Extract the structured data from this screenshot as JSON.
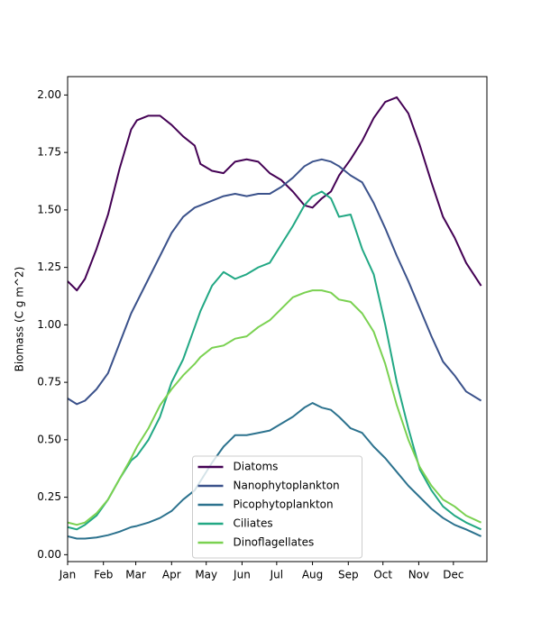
{
  "chart_data": {
    "type": "line",
    "ylabel": "Biomass (C g m^2)",
    "x": [
      0,
      8,
      15,
      25,
      35,
      45,
      55,
      60,
      70,
      80,
      90,
      100,
      110,
      115,
      125,
      135,
      145,
      155,
      165,
      175,
      185,
      195,
      205,
      212,
      220,
      228,
      235,
      245,
      255,
      265,
      275,
      285,
      295,
      305,
      315,
      325,
      335,
      345,
      358
    ],
    "xlim": [
      0,
      363
    ],
    "xticks": [
      {
        "value": 0,
        "label": "Jan"
      },
      {
        "value": 31,
        "label": "Feb"
      },
      {
        "value": 59,
        "label": "Mar"
      },
      {
        "value": 90,
        "label": "Apr"
      },
      {
        "value": 120,
        "label": "May"
      },
      {
        "value": 151,
        "label": "Jun"
      },
      {
        "value": 181,
        "label": "Jul"
      },
      {
        "value": 212,
        "label": "Aug"
      },
      {
        "value": 243,
        "label": "Sep"
      },
      {
        "value": 273,
        "label": "Oct"
      },
      {
        "value": 304,
        "label": "Nov"
      },
      {
        "value": 334,
        "label": "Dec"
      }
    ],
    "ylim": [
      -0.03,
      2.08
    ],
    "yticks": [
      {
        "value": 0,
        "label": "0.00"
      },
      {
        "value": 0.25,
        "label": "0.25"
      },
      {
        "value": 0.5,
        "label": "0.50"
      },
      {
        "value": 0.75,
        "label": "0.75"
      },
      {
        "value": 1,
        "label": "1.00"
      },
      {
        "value": 1.25,
        "label": "1.25"
      },
      {
        "value": 1.5,
        "label": "1.50"
      },
      {
        "value": 1.75,
        "label": "1.75"
      },
      {
        "value": 2,
        "label": "2.00"
      }
    ],
    "legend": "lower center",
    "series": [
      {
        "name": "Diatoms",
        "color": "#440154",
        "values": [
          1.19,
          1.15,
          1.2,
          1.33,
          1.48,
          1.68,
          1.85,
          1.89,
          1.91,
          1.91,
          1.87,
          1.82,
          1.78,
          1.7,
          1.67,
          1.66,
          1.71,
          1.72,
          1.71,
          1.66,
          1.63,
          1.58,
          1.52,
          1.51,
          1.55,
          1.58,
          1.65,
          1.72,
          1.8,
          1.9,
          1.97,
          1.99,
          1.92,
          1.78,
          1.62,
          1.47,
          1.38,
          1.27,
          1.17
        ]
      },
      {
        "name": "Nanophytoplankton",
        "color": "#3b528b",
        "values": [
          0.68,
          0.655,
          0.67,
          0.72,
          0.79,
          0.92,
          1.05,
          1.1,
          1.2,
          1.3,
          1.4,
          1.47,
          1.51,
          1.52,
          1.54,
          1.56,
          1.57,
          1.56,
          1.57,
          1.57,
          1.6,
          1.64,
          1.69,
          1.71,
          1.72,
          1.71,
          1.69,
          1.65,
          1.62,
          1.53,
          1.42,
          1.3,
          1.19,
          1.07,
          0.95,
          0.84,
          0.78,
          0.71,
          0.67
        ]
      },
      {
        "name": "Picophytoplankton",
        "color": "#2c728e",
        "values": [
          0.08,
          0.07,
          0.07,
          0.075,
          0.085,
          0.1,
          0.12,
          0.125,
          0.14,
          0.16,
          0.19,
          0.24,
          0.28,
          0.32,
          0.4,
          0.47,
          0.52,
          0.52,
          0.53,
          0.54,
          0.57,
          0.6,
          0.64,
          0.66,
          0.64,
          0.63,
          0.6,
          0.55,
          0.53,
          0.47,
          0.42,
          0.36,
          0.3,
          0.25,
          0.2,
          0.16,
          0.13,
          0.11,
          0.08
        ]
      },
      {
        "name": "Ciliates",
        "color": "#22a884",
        "values": [
          0.12,
          0.11,
          0.13,
          0.17,
          0.24,
          0.33,
          0.41,
          0.43,
          0.5,
          0.6,
          0.75,
          0.85,
          0.99,
          1.06,
          1.17,
          1.23,
          1.2,
          1.22,
          1.25,
          1.27,
          1.35,
          1.43,
          1.52,
          1.56,
          1.58,
          1.55,
          1.47,
          1.48,
          1.33,
          1.22,
          1.0,
          0.75,
          0.55,
          0.37,
          0.28,
          0.21,
          0.17,
          0.14,
          0.11
        ]
      },
      {
        "name": "Dinoflagellates",
        "color": "#7ad151",
        "values": [
          0.14,
          0.13,
          0.14,
          0.18,
          0.24,
          0.33,
          0.42,
          0.47,
          0.55,
          0.65,
          0.72,
          0.78,
          0.83,
          0.86,
          0.9,
          0.91,
          0.94,
          0.95,
          0.99,
          1.02,
          1.07,
          1.12,
          1.14,
          1.15,
          1.15,
          1.14,
          1.11,
          1.1,
          1.05,
          0.97,
          0.83,
          0.65,
          0.5,
          0.38,
          0.3,
          0.24,
          0.21,
          0.17,
          0.14
        ]
      }
    ]
  }
}
